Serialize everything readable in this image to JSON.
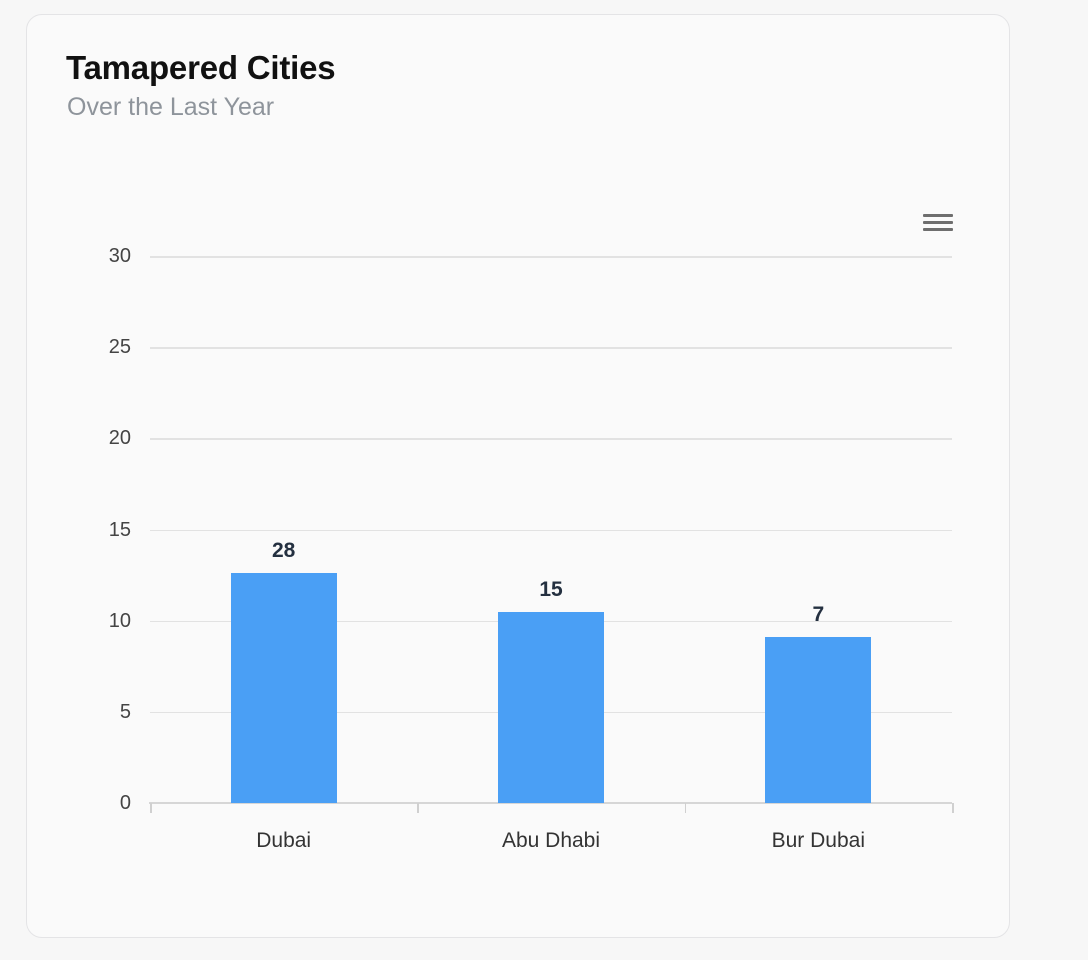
{
  "card": {
    "title": "Tamapered Cities",
    "subtitle": "Over the Last Year",
    "menu_icon": "hamburger-menu-icon"
  },
  "colors": {
    "bar": "#4a9ff5",
    "title": "#111111",
    "subtitle": "#8e949b",
    "data_label": "#243040"
  },
  "chart_data": {
    "type": "bar",
    "title": "Tamapered Cities",
    "subtitle": "Over the Last Year",
    "categories": [
      "Dubai",
      "Abu Dhabi",
      "Bur Dubai"
    ],
    "values": [
      28,
      15,
      7
    ],
    "rendered_bar_heights": [
      12.6,
      10.5,
      9.1
    ],
    "data_labels": [
      "28",
      "15",
      "7"
    ],
    "xlabel": "",
    "ylabel": "",
    "ylim": [
      0,
      30
    ],
    "yticks": [
      "0",
      "5",
      "10",
      "15",
      "20",
      "25",
      "30"
    ],
    "grid": true,
    "legend": null,
    "color": "#4a9ff5"
  }
}
